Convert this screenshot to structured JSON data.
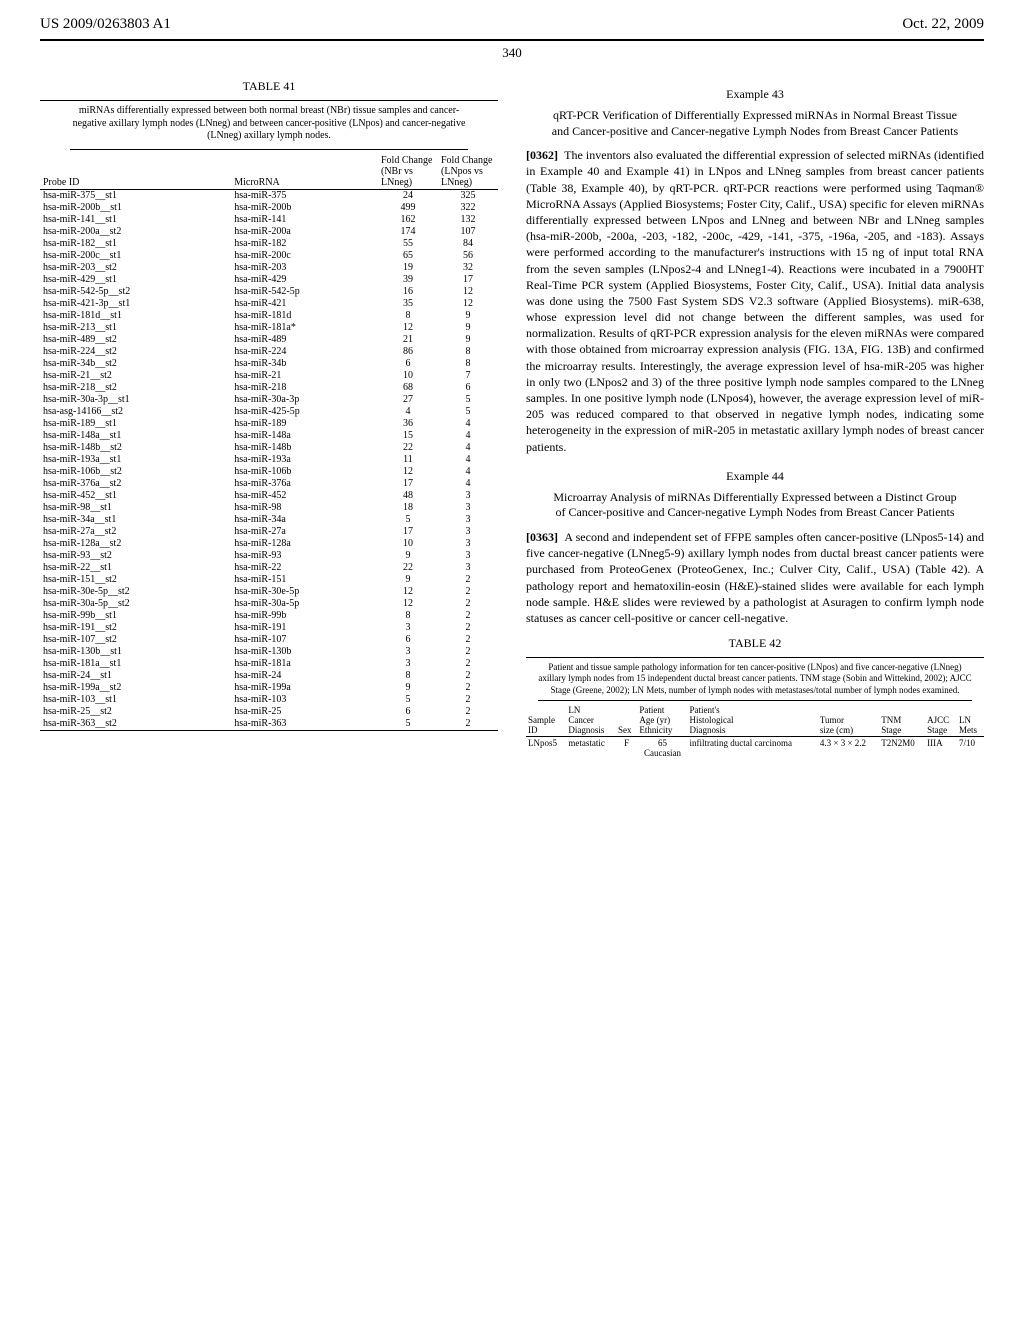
{
  "header": {
    "pub_number": "US 2009/0263803 A1",
    "date": "Oct. 22, 2009",
    "page_number": "340"
  },
  "table41": {
    "label": "TABLE 41",
    "caption": "miRNAs differentially expressed between both normal breast (NBr) tissue samples and cancer-negative axillary lymph nodes (LNneg) and between cancer-positive (LNpos) and cancer-negative (LNneg) axillary lymph nodes.",
    "columns": [
      "Probe ID",
      "MicroRNA",
      "Fold Change (NBr vs LNneg)",
      "Fold Change (LNpos vs LNneg)"
    ],
    "rows": [
      [
        "hsa-miR-375__st1",
        "hsa-miR-375",
        "24",
        "325"
      ],
      [
        "hsa-miR-200b__st1",
        "hsa-miR-200b",
        "499",
        "322"
      ],
      [
        "hsa-miR-141__st1",
        "hsa-miR-141",
        "162",
        "132"
      ],
      [
        "hsa-miR-200a__st2",
        "hsa-miR-200a",
        "174",
        "107"
      ],
      [
        "hsa-miR-182__st1",
        "hsa-miR-182",
        "55",
        "84"
      ],
      [
        "hsa-miR-200c__st1",
        "hsa-miR-200c",
        "65",
        "56"
      ],
      [
        "hsa-miR-203__st2",
        "hsa-miR-203",
        "19",
        "32"
      ],
      [
        "hsa-miR-429__st1",
        "hsa-miR-429",
        "39",
        "17"
      ],
      [
        "hsa-miR-542-5p__st2",
        "hsa-miR-542-5p",
        "16",
        "12"
      ],
      [
        "hsa-miR-421-3p__st1",
        "hsa-miR-421",
        "35",
        "12"
      ],
      [
        "hsa-miR-181d__st1",
        "hsa-miR-181d",
        "8",
        "9"
      ],
      [
        "hsa-miR-213__st1",
        "hsa-miR-181a*",
        "12",
        "9"
      ],
      [
        "hsa-miR-489__st2",
        "hsa-miR-489",
        "21",
        "9"
      ],
      [
        "hsa-miR-224__st2",
        "hsa-miR-224",
        "86",
        "8"
      ],
      [
        "hsa-miR-34b__st2",
        "hsa-miR-34b",
        "6",
        "8"
      ],
      [
        "hsa-miR-21__st2",
        "hsa-miR-21",
        "10",
        "7"
      ],
      [
        "hsa-miR-218__st2",
        "hsa-miR-218",
        "68",
        "6"
      ],
      [
        "hsa-miR-30a-3p__st1",
        "hsa-miR-30a-3p",
        "27",
        "5"
      ],
      [
        "hsa-asg-14166__st2",
        "hsa-miR-425-5p",
        "4",
        "5"
      ],
      [
        "hsa-miR-189__st1",
        "hsa-miR-189",
        "36",
        "4"
      ],
      [
        "hsa-miR-148a__st1",
        "hsa-miR-148a",
        "15",
        "4"
      ],
      [
        "hsa-miR-148b__st2",
        "hsa-miR-148b",
        "22",
        "4"
      ],
      [
        "hsa-miR-193a__st1",
        "hsa-miR-193a",
        "11",
        "4"
      ],
      [
        "hsa-miR-106b__st2",
        "hsa-miR-106b",
        "12",
        "4"
      ],
      [
        "hsa-miR-376a__st2",
        "hsa-miR-376a",
        "17",
        "4"
      ],
      [
        "hsa-miR-452__st1",
        "hsa-miR-452",
        "48",
        "3"
      ],
      [
        "hsa-miR-98__st1",
        "hsa-miR-98",
        "18",
        "3"
      ],
      [
        "hsa-miR-34a__st1",
        "hsa-miR-34a",
        "5",
        "3"
      ],
      [
        "hsa-miR-27a__st2",
        "hsa-miR-27a",
        "17",
        "3"
      ],
      [
        "hsa-miR-128a__st2",
        "hsa-miR-128a",
        "10",
        "3"
      ],
      [
        "hsa-miR-93__st2",
        "hsa-miR-93",
        "9",
        "3"
      ],
      [
        "hsa-miR-22__st1",
        "hsa-miR-22",
        "22",
        "3"
      ],
      [
        "hsa-miR-151__st2",
        "hsa-miR-151",
        "9",
        "2"
      ],
      [
        "hsa-miR-30e-5p__st2",
        "hsa-miR-30e-5p",
        "12",
        "2"
      ],
      [
        "hsa-miR-30a-5p__st2",
        "hsa-miR-30a-5p",
        "12",
        "2"
      ],
      [
        "hsa-miR-99b__st1",
        "hsa-miR-99b",
        "8",
        "2"
      ],
      [
        "hsa-miR-191__st2",
        "hsa-miR-191",
        "3",
        "2"
      ],
      [
        "hsa-miR-107__st2",
        "hsa-miR-107",
        "6",
        "2"
      ],
      [
        "hsa-miR-130b__st1",
        "hsa-miR-130b",
        "3",
        "2"
      ],
      [
        "hsa-miR-181a__st1",
        "hsa-miR-181a",
        "3",
        "2"
      ],
      [
        "hsa-miR-24__st1",
        "hsa-miR-24",
        "8",
        "2"
      ],
      [
        "hsa-miR-199a__st2",
        "hsa-miR-199a",
        "9",
        "2"
      ],
      [
        "hsa-miR-103__st1",
        "hsa-miR-103",
        "5",
        "2"
      ],
      [
        "hsa-miR-25__st2",
        "hsa-miR-25",
        "6",
        "2"
      ],
      [
        "hsa-miR-363__st2",
        "hsa-miR-363",
        "5",
        "2"
      ]
    ]
  },
  "example43": {
    "num": "Example 43",
    "title": "qRT-PCR Verification of Differentially Expressed miRNAs in Normal Breast Tissue and Cancer-positive and Cancer-negative Lymph Nodes from Breast Cancer Patients",
    "para_num": "[0362]",
    "body": "The inventors also evaluated the differential expression of selected miRNAs (identified in Example 40 and Example 41) in LNpos and LNneg samples from breast cancer patients (Table 38, Example 40), by qRT-PCR. qRT-PCR reactions were performed using Taqman® MicroRNA Assays (Applied Biosystems; Foster City, Calif., USA) specific for eleven miRNAs differentially expressed between LNpos and LNneg and between NBr and LNneg samples (hsa-miR-200b, -200a, -203, -182, -200c, -429, -141, -375, -196a, -205, and -183). Assays were performed according to the manufacturer's instructions with 15 ng of input total RNA from the seven samples (LNpos2-4 and LNneg1-4). Reactions were incubated in a 7900HT Real-Time PCR system (Applied Biosystems, Foster City, Calif., USA). Initial data analysis was done using the 7500 Fast System SDS V2.3 software (Applied Biosystems). miR-638, whose expression level did not change between the different samples, was used for normalization. Results of qRT-PCR expression analysis for the eleven miRNAs were compared with those obtained from microarray expression analysis (FIG. 13A, FIG. 13B) and confirmed the microarray results. Interestingly, the average expression level of hsa-miR-205 was higher in only two (LNpos2 and 3) of the three positive lymph node samples compared to the LNneg samples. In one positive lymph node (LNpos4), however, the average expression level of miR-205 was reduced compared to that observed in negative lymph nodes, indicating some heterogeneity in the expression of miR-205 in metastatic axillary lymph nodes of breast cancer patients."
  },
  "example44": {
    "num": "Example 44",
    "title": "Microarray Analysis of miRNAs Differentially Expressed between a Distinct Group of Cancer-positive and Cancer-negative Lymph Nodes from Breast Cancer Patients",
    "para_num": "[0363]",
    "body": "A second and independent set of FFPE samples often cancer-positive (LNpos5-14) and five cancer-negative (LNneg5-9) axillary lymph nodes from ductal breast cancer patients were purchased from ProteoGenex (ProteoGenex, Inc.; Culver City, Calif., USA) (Table 42). A pathology report and hematoxilin-eosin (H&E)-stained slides were available for each lymph node sample. H&E slides were reviewed by a pathologist at Asuragen to confirm lymph node statuses as cancer cell-positive or cancer cell-negative."
  },
  "table42": {
    "label": "TABLE 42",
    "caption": "Patient and tissue sample pathology information for ten cancer-positive (LNpos) and five cancer-negative (LNneg) axillary lymph nodes from 15 independent ductal breast cancer patients. TNM stage (Sobin and Wittekind, 2002); AJCC Stage (Greene, 2002); LN Mets, number of lymph nodes with metastases/total number of lymph nodes examined.",
    "columns": [
      "Sample ID",
      "LN Cancer Diagnosis",
      "Sex",
      "Patient Age (yr) Ethnicity",
      "Patient's Histological Diagnosis",
      "Tumor size (cm)",
      "TNM Stage",
      "AJCC Stage",
      "LN Mets"
    ],
    "row": {
      "sample_id": "LNpos5",
      "diagnosis": "metastatic",
      "sex": "F",
      "age": "65",
      "ethnicity": "Caucasian",
      "hist": "infiltrating ductal carcinoma",
      "tumor": "4.3 × 3 × 2.2",
      "tnm": "T2N2M0",
      "ajcc": "IIIA",
      "mets": "7/10"
    }
  }
}
